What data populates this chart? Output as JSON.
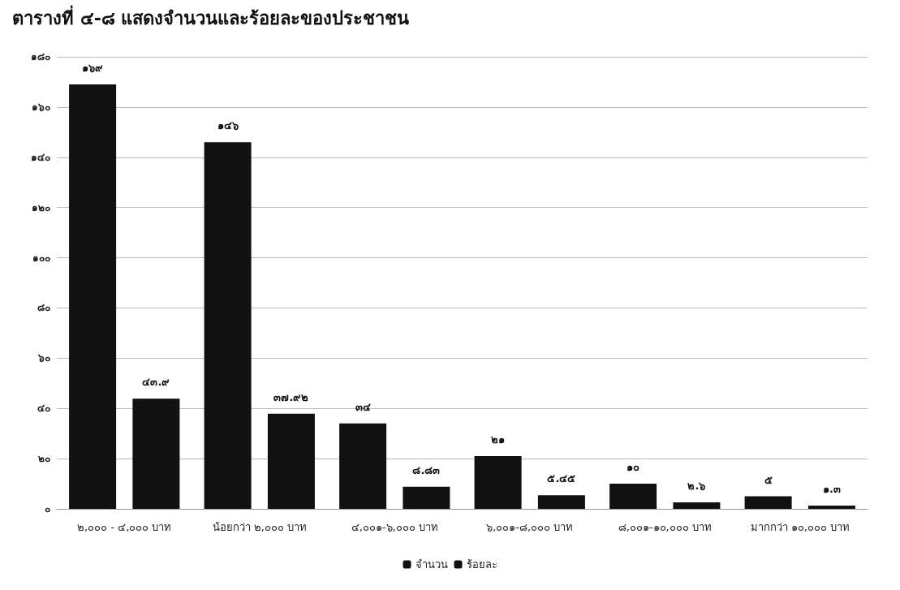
{
  "chart_data": {
    "type": "bar",
    "title": "ตารางที่ ๔-๘ แสดงจำนวนและร้อยละของประชาชน",
    "categories": [
      "๒,๐๐๐ - ๔,๐๐๐ บาท",
      "น้อยกว่า ๒,๐๐๐ บาท",
      "๔,๐๐๑-๖,๐๐๐ บาท",
      "๖,๐๐๑-๘,๐๐๐ บาท",
      "๘,๐๐๑-๑๐,๐๐๐ บาท",
      "มากกว่า ๑๐,๐๐๐ บาท"
    ],
    "series": [
      {
        "name": "จำนวน",
        "color": "#111111",
        "values": [
          169,
          146,
          34,
          21,
          10,
          5
        ],
        "value_labels": [
          "๑๖๙",
          "๑๔๖",
          "๓๔",
          "๒๑",
          "๑๐",
          "๕"
        ]
      },
      {
        "name": "ร้อยละ",
        "color": "#111111",
        "values": [
          43.9,
          37.92,
          8.83,
          5.45,
          2.6,
          1.3
        ],
        "value_labels": [
          "๔๓.๙",
          "๓๗.๙๒",
          "๘.๘๓",
          "๕.๔๕",
          "๒.๖",
          "๑.๓"
        ]
      }
    ],
    "ylim": [
      0,
      180
    ],
    "yticks": [
      {
        "value": 0,
        "label": "๐"
      },
      {
        "value": 20,
        "label": "๒๐"
      },
      {
        "value": 40,
        "label": "๔๐"
      },
      {
        "value": 60,
        "label": "๖๐"
      },
      {
        "value": 80,
        "label": "๘๐"
      },
      {
        "value": 100,
        "label": "๑๐๐"
      },
      {
        "value": 120,
        "label": "๑๒๐"
      },
      {
        "value": 140,
        "label": "๑๔๐"
      },
      {
        "value": 160,
        "label": "๑๖๐"
      },
      {
        "value": 180,
        "label": "๑๘๐"
      }
    ],
    "grid": "y",
    "legend": "bottom"
  }
}
